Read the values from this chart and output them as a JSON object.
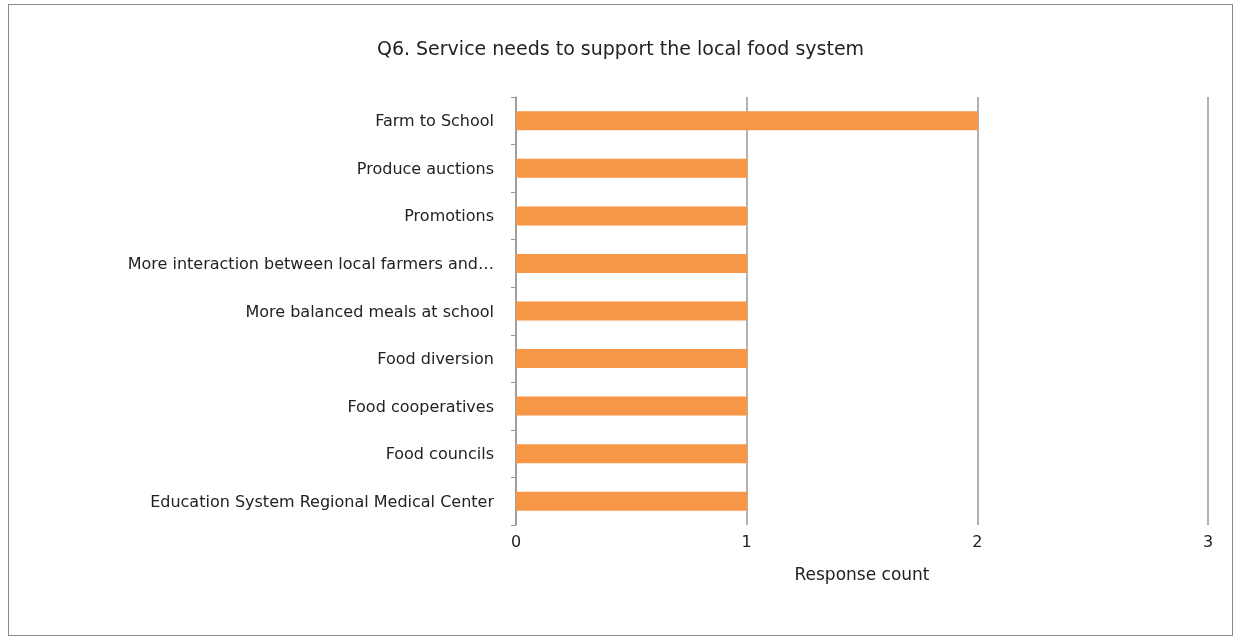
{
  "chart_data": {
    "type": "bar",
    "orientation": "horizontal",
    "title": "Q6. Service needs to support the local food system",
    "xlabel": "Response count",
    "categories": [
      "Farm to School",
      "Produce auctions",
      "Promotions",
      "More interaction between local farmers and…",
      "More balanced meals at school",
      "Food diversion",
      "Food cooperatives",
      "Food councils",
      "Education System Regional Medical Center"
    ],
    "values": [
      2,
      1,
      1,
      1,
      1,
      1,
      1,
      1,
      1
    ],
    "color": "#f79646",
    "xlim": [
      0,
      3
    ],
    "xticks": [
      0,
      1,
      2,
      3
    ],
    "grid": "x"
  }
}
